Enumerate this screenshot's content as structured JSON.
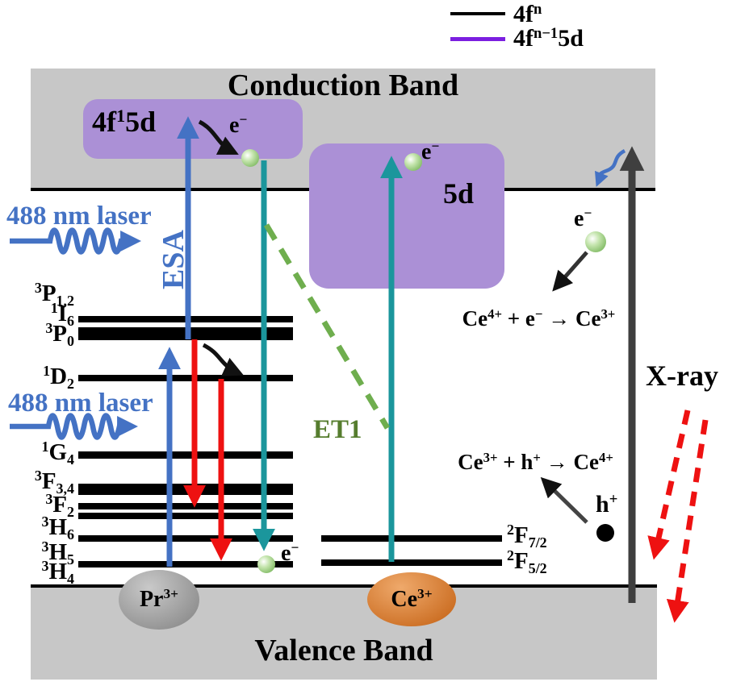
{
  "legend": {
    "items": [
      {
        "key": "4f-n",
        "color": "#000000",
        "label": [
          [
            "t",
            "4f"
          ],
          [
            "sup",
            "n"
          ]
        ]
      },
      {
        "key": "4f-n-1-5d",
        "color": "#7B1FE0",
        "label": [
          [
            "t",
            "4f"
          ],
          [
            "sup",
            "n−1"
          ],
          [
            "t",
            "5d"
          ]
        ]
      }
    ]
  },
  "bands": {
    "conduction_label": "Conduction Band",
    "valence_label": "Valence Band",
    "fill_color": "#C7C7C7"
  },
  "states": {
    "pr_5d_label": [
      [
        "t",
        "4f"
      ],
      [
        "sup",
        "1"
      ],
      [
        "t",
        "5d"
      ]
    ],
    "ce_5d_label": [
      [
        "t",
        "5d"
      ]
    ],
    "box_color": "#AB90D6"
  },
  "pr": {
    "ion_label": [
      [
        "t",
        "Pr"
      ],
      [
        "sup",
        "3+"
      ]
    ],
    "levels": [
      {
        "label": [
          [
            "sup",
            "3"
          ],
          [
            "t",
            "P"
          ],
          [
            "sub",
            "1,2"
          ]
        ]
      },
      {
        "label": [
          [
            "sup",
            "1"
          ],
          [
            "t",
            "I"
          ],
          [
            "sub",
            "6"
          ]
        ]
      },
      {
        "label": [
          [
            "sup",
            "3"
          ],
          [
            "t",
            "P"
          ],
          [
            "sub",
            "0"
          ]
        ]
      },
      {
        "label": [
          [
            "sup",
            "1"
          ],
          [
            "t",
            "D"
          ],
          [
            "sub",
            "2"
          ]
        ]
      },
      {
        "label": [
          [
            "sup",
            "1"
          ],
          [
            "t",
            "G"
          ],
          [
            "sub",
            "4"
          ]
        ]
      },
      {
        "label": [
          [
            "sup",
            "3"
          ],
          [
            "t",
            "F"
          ],
          [
            "sub",
            "3,4"
          ]
        ]
      },
      {
        "label": [
          [
            "sup",
            "3"
          ],
          [
            "t",
            "F"
          ],
          [
            "sub",
            "2"
          ]
        ]
      },
      {
        "label": [
          [
            "sup",
            "3"
          ],
          [
            "t",
            "H"
          ],
          [
            "sub",
            "6"
          ]
        ]
      },
      {
        "label": [
          [
            "sup",
            "3"
          ],
          [
            "t",
            "H"
          ],
          [
            "sub",
            "5"
          ]
        ]
      },
      {
        "label": [
          [
            "sup",
            "3"
          ],
          [
            "t",
            "H"
          ],
          [
            "sub",
            "4"
          ]
        ]
      }
    ]
  },
  "ce": {
    "ion_label": [
      [
        "t",
        "Ce"
      ],
      [
        "sup",
        "3+"
      ]
    ],
    "levels": [
      {
        "label": [
          [
            "sup",
            "2"
          ],
          [
            "t",
            "F"
          ],
          [
            "sub",
            "7/2"
          ]
        ]
      },
      {
        "label": [
          [
            "sup",
            "2"
          ],
          [
            "t",
            "F"
          ],
          [
            "sub",
            "5/2"
          ]
        ]
      }
    ]
  },
  "annotations": {
    "laser_label": "488 nm laser",
    "esa": "ESA",
    "et1": "ET1",
    "xray": "X-ray",
    "electron": [
      [
        "t",
        "e"
      ],
      [
        "sup",
        "−"
      ]
    ],
    "hole": [
      [
        "t",
        "h"
      ],
      [
        "sup",
        "+"
      ]
    ],
    "reaction_electron": [
      [
        "t",
        "Ce"
      ],
      [
        "sup",
        "4+"
      ],
      [
        "t",
        " + e"
      ],
      [
        "sup",
        "−"
      ],
      [
        "t",
        " → Ce"
      ],
      [
        "sup",
        "3+"
      ]
    ],
    "reaction_hole": [
      [
        "t",
        "Ce"
      ],
      [
        "sup",
        "3+"
      ],
      [
        "t",
        " + h"
      ],
      [
        "sup",
        "+"
      ],
      [
        "t",
        " → Ce"
      ],
      [
        "sup",
        "4+"
      ]
    ]
  },
  "colors": {
    "laser_blue": "#4472C4",
    "emission_red": "#EE1111",
    "teal": "#1B969C",
    "et1_dash_green": "#6FAE4E",
    "et1_text_green": "#567D2E",
    "xray_dash_red": "#EE1111",
    "host_arrow_dark": "#3F3F3F",
    "legend_purple": "#7B1FE0",
    "band_gray": "#C7C7C7",
    "state_purple": "#AB90D6",
    "ce_ion_orange": "#D2701F",
    "pr_ion_gray": "#8F8F8F",
    "electron_green": "#86BE6A"
  }
}
